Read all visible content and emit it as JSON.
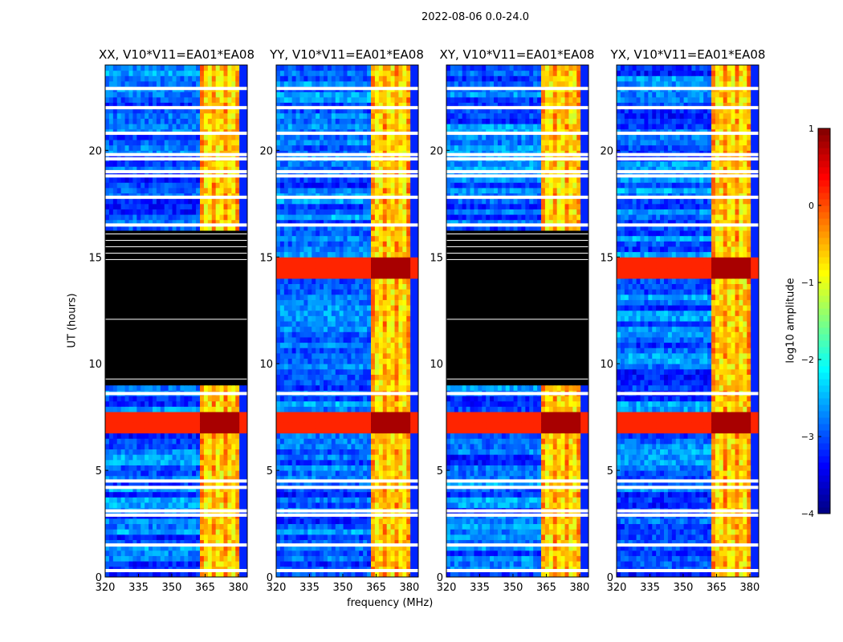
{
  "chart_data": {
    "type": "heatmap",
    "suptitle": "2022-08-06 0.0-24.0",
    "xlabel": "frequency (MHz)",
    "ylabel": "UT (hours)",
    "xlim": [
      320,
      384
    ],
    "ylim": [
      0,
      24
    ],
    "xticks": [
      "320",
      "335",
      "350",
      "365",
      "380"
    ],
    "yticks": [
      "0",
      "5",
      "10",
      "15",
      "20"
    ],
    "panels": [
      {
        "title": "XX, V10*V11=EA01*EA08",
        "no_data_hours": [
          8.9,
          16.2
        ],
        "strong_rfi_hours": [
          7.2
        ]
      },
      {
        "title": "YY, V10*V11=EA01*EA08",
        "no_data_hours": null,
        "strong_rfi_hours": [
          7.2,
          14.5
        ]
      },
      {
        "title": "XY, V10*V11=EA01*EA08",
        "no_data_hours": [
          8.9,
          16.2
        ],
        "strong_rfi_hours": [
          7.2
        ]
      },
      {
        "title": "YX, V10*V11=EA01*EA08",
        "no_data_hours": null,
        "strong_rfi_hours": [
          7.2,
          14.5
        ]
      }
    ],
    "rfi_band_mhz": [
      362,
      381
    ],
    "flagged_hours": [
      0.3,
      1.5,
      2.9,
      3.1,
      4.2,
      4.5,
      8.6,
      16.5,
      17.8,
      18.8,
      19.0,
      19.6,
      19.8,
      20.8,
      22.0,
      22.9
    ],
    "colorbar": {
      "label": "log10 amplitude",
      "range": [
        -4,
        1
      ],
      "ticks": [
        "1",
        "0",
        "−1",
        "−2",
        "−3",
        "−4"
      ],
      "colormap": "jet"
    }
  }
}
